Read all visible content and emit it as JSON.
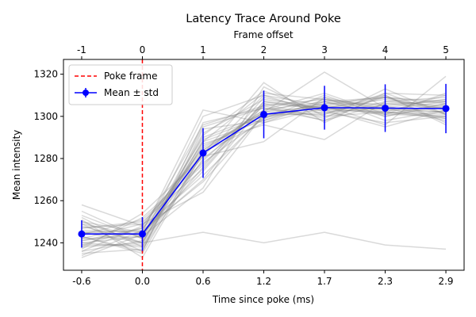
{
  "chart_data": {
    "type": "line",
    "title": "Latency Trace Around Poke",
    "xlabel": "Time since poke (ms)",
    "ylabel": "Mean intensity",
    "x2label": "Frame offset",
    "frame_offsets": [
      -1,
      0,
      1,
      2,
      3,
      4,
      5
    ],
    "x_tick_labels": [
      "-0.6",
      "0.0",
      "0.6",
      "1.2",
      "1.7",
      "2.3",
      "2.9"
    ],
    "x2_tick_labels": [
      "-1",
      "0",
      "1",
      "2",
      "3",
      "4",
      "5"
    ],
    "ylim": [
      1227,
      1327
    ],
    "y_ticks": [
      1240,
      1260,
      1280,
      1300,
      1320
    ],
    "poke_frame": 0,
    "legend": {
      "placement": "top-left",
      "poke_label": "Poke frame",
      "mean_label": "Mean ± std"
    },
    "mean": [
      1244.2,
      1244.2,
      1282.6,
      1300.9,
      1304.1,
      1303.9,
      1303.7
    ],
    "std": [
      6.5,
      8.0,
      11.8,
      11.3,
      10.4,
      11.3,
      11.7
    ],
    "traces": [
      [
        1245,
        1240,
        1245,
        1240,
        1245,
        1239,
        1237
      ],
      [
        1238,
        1240,
        1292,
        1308,
        1304,
        1301,
        1306
      ],
      [
        1236,
        1241,
        1295,
        1304,
        1298,
        1306,
        1304
      ],
      [
        1240,
        1238,
        1287,
        1296,
        1289,
        1307,
        1309
      ],
      [
        1243,
        1235,
        1284,
        1303,
        1307,
        1309,
        1303
      ],
      [
        1235,
        1237,
        1280,
        1302,
        1305,
        1303,
        1307
      ],
      [
        1245,
        1246,
        1296,
        1305,
        1308,
        1302,
        1310
      ],
      [
        1247,
        1250,
        1275,
        1307,
        1303,
        1302,
        1301
      ],
      [
        1233,
        1244,
        1290,
        1301,
        1301,
        1311,
        1301
      ],
      [
        1250,
        1245,
        1270,
        1306,
        1304,
        1309,
        1307
      ],
      [
        1251,
        1233,
        1283,
        1297,
        1307,
        1301,
        1300
      ],
      [
        1242,
        1249,
        1264,
        1301,
        1303,
        1295,
        1303
      ],
      [
        1255,
        1242,
        1300,
        1310,
        1305,
        1310,
        1296
      ],
      [
        1238,
        1252,
        1278,
        1299,
        1310,
        1300,
        1305
      ],
      [
        1248,
        1240,
        1288,
        1311,
        1308,
        1305,
        1308
      ],
      [
        1241,
        1247,
        1272,
        1300,
        1302,
        1304,
        1298
      ],
      [
        1252,
        1238,
        1282,
        1316,
        1297,
        1311,
        1310
      ],
      [
        1237,
        1254,
        1281,
        1288,
        1309,
        1298,
        1303
      ],
      [
        1249,
        1236,
        1294,
        1298,
        1306,
        1309,
        1306
      ],
      [
        1240,
        1243,
        1266,
        1314,
        1300,
        1302,
        1300
      ],
      [
        1258,
        1248,
        1285,
        1302,
        1321,
        1304,
        1302
      ],
      [
        1244,
        1251,
        1277,
        1306,
        1299,
        1313,
        1301
      ],
      [
        1239,
        1239,
        1289,
        1300,
        1305,
        1296,
        1319
      ],
      [
        1246,
        1245,
        1303,
        1297,
        1304,
        1308,
        1304
      ],
      [
        1253,
        1242,
        1276,
        1309,
        1303,
        1305,
        1299
      ],
      [
        1236,
        1248,
        1283,
        1303,
        1311,
        1301,
        1311
      ],
      [
        1245,
        1244,
        1279,
        1305,
        1298,
        1310,
        1297
      ],
      [
        1242,
        1243,
        1286,
        1299,
        1307,
        1300,
        1306
      ],
      [
        1250,
        1240,
        1291,
        1312,
        1302,
        1297,
        1300
      ],
      [
        1234,
        1246,
        1269,
        1301,
        1306,
        1306,
        1307
      ],
      [
        1247,
        1249,
        1284,
        1302,
        1309,
        1303,
        1302
      ],
      [
        1243,
        1236,
        1297,
        1304,
        1300,
        1307,
        1305
      ],
      [
        1241,
        1245,
        1274,
        1307,
        1304,
        1302,
        1299
      ],
      [
        1249,
        1243,
        1288,
        1298,
        1308,
        1304,
        1308
      ],
      [
        1239,
        1247,
        1281,
        1310,
        1301,
        1309,
        1301
      ]
    ]
  }
}
